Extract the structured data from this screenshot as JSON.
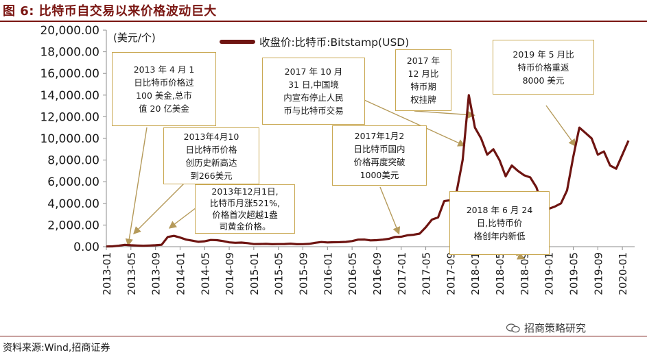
{
  "header": {
    "title": "图 6:  比特币自交易以来价格波动巨大"
  },
  "footer": {
    "source": "资料来源:Wind,招商证券",
    "watermark": "招商策略研究"
  },
  "colors": {
    "brand": "#7a1612",
    "series": "#6e1411",
    "annotation_border": "#c9a852",
    "arrow": "#b59a5a"
  },
  "chart_data": {
    "type": "line",
    "unit_label": "(美元/个)",
    "ylim": [
      0,
      20000
    ],
    "yticks": [
      "0.00",
      "2,000.00",
      "4,000.00",
      "6,000.00",
      "8,000.00",
      "10,000.00",
      "12,000.00",
      "14,000.00",
      "16,000.00",
      "18,000.00",
      "20,000.00"
    ],
    "xticks": [
      "2013-01",
      "2013-05",
      "2013-09",
      "2014-01",
      "2014-05",
      "2014-09",
      "2015-01",
      "2015-05",
      "2015-09",
      "2016-01",
      "2016-05",
      "2016-09",
      "2017-01",
      "2017-05",
      "2017-09",
      "2018-01",
      "2018-05",
      "2018-09",
      "2019-01",
      "2019-05",
      "2019-09",
      "2020-01"
    ],
    "legend_position": "top",
    "grid": false,
    "series": [
      {
        "name": "收盘价:比特币:Bitstamp(USD)",
        "x": [
          "2013-01",
          "2013-02",
          "2013-03",
          "2013-04",
          "2013-05",
          "2013-06",
          "2013-07",
          "2013-08",
          "2013-09",
          "2013-10",
          "2013-11",
          "2013-12",
          "2014-01",
          "2014-02",
          "2014-03",
          "2014-04",
          "2014-05",
          "2014-06",
          "2014-07",
          "2014-08",
          "2014-09",
          "2014-10",
          "2014-11",
          "2014-12",
          "2015-01",
          "2015-02",
          "2015-03",
          "2015-04",
          "2015-05",
          "2015-06",
          "2015-07",
          "2015-08",
          "2015-09",
          "2015-10",
          "2015-11",
          "2015-12",
          "2016-01",
          "2016-02",
          "2016-03",
          "2016-04",
          "2016-05",
          "2016-06",
          "2016-07",
          "2016-08",
          "2016-09",
          "2016-10",
          "2016-11",
          "2016-12",
          "2017-01",
          "2017-02",
          "2017-03",
          "2017-04",
          "2017-05",
          "2017-06",
          "2017-07",
          "2017-08",
          "2017-09",
          "2017-10",
          "2017-11",
          "2017-12",
          "2018-01",
          "2018-02",
          "2018-03",
          "2018-04",
          "2018-05",
          "2018-06",
          "2018-07",
          "2018-08",
          "2018-09",
          "2018-10",
          "2018-11",
          "2018-12",
          "2019-01",
          "2019-02",
          "2019-03",
          "2019-04",
          "2019-05",
          "2019-06",
          "2019-07",
          "2019-08",
          "2019-09",
          "2019-10",
          "2019-11",
          "2019-12",
          "2020-01",
          "2020-02"
        ],
        "values": [
          20,
          30,
          90,
          170,
          130,
          110,
          90,
          110,
          130,
          180,
          900,
          1000,
          850,
          650,
          560,
          450,
          500,
          620,
          600,
          520,
          400,
          360,
          380,
          330,
          240,
          250,
          260,
          230,
          240,
          250,
          280,
          230,
          235,
          260,
          360,
          430,
          390,
          410,
          415,
          440,
          520,
          650,
          660,
          580,
          600,
          650,
          730,
          900,
          920,
          1050,
          1100,
          1200,
          1800,
          2500,
          2700,
          4200,
          4300,
          5000,
          8000,
          14000,
          11000,
          10000,
          8500,
          9000,
          8000,
          6500,
          7500,
          7000,
          6600,
          6400,
          5500,
          3800,
          3500,
          3700,
          4000,
          5200,
          8300,
          11000,
          10500,
          10000,
          8500,
          8800,
          7500,
          7200,
          8500,
          9800
        ]
      }
    ],
    "annotations": [
      {
        "id": "a1",
        "lines": [
          "2013 年 4 月 1",
          "日比特币价格过",
          "100 美金,总市",
          "值 20 亿美金"
        ]
      },
      {
        "id": "a2",
        "lines": [
          "2013年4月10",
          "日比特币价格",
          "创历史新高达",
          "到266美元"
        ]
      },
      {
        "id": "a3",
        "lines": [
          "2013年12月1日,",
          "比特币月涨521%,",
          "价格首次超越1盎",
          "司黄金价格。"
        ]
      },
      {
        "id": "a4",
        "lines": [
          "2017 年 10 月",
          "31 日,中国境",
          "内宣布停止人民",
          "币与比特币交易"
        ]
      },
      {
        "id": "a5",
        "lines": [
          "2017 年",
          "12 月比",
          "特币期",
          "权挂牌"
        ]
      },
      {
        "id": "a6",
        "lines": [
          "2019 年 5 月比",
          "特币价格重返",
          "8000 美元"
        ]
      },
      {
        "id": "a7",
        "lines": [
          "2017年1月2",
          "日比特币国内",
          "价格再度突破",
          "1000美元"
        ]
      },
      {
        "id": "a8",
        "lines": [
          "2018 年 6 月 24",
          "日,比特币价",
          "格创年内新低"
        ]
      }
    ]
  }
}
